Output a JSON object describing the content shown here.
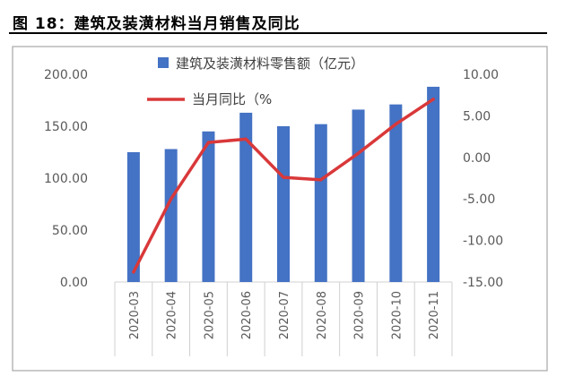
{
  "header": {
    "title": "图 18：建筑及装潢材料当月销售及同比"
  },
  "colors": {
    "bar": "#4472C4",
    "line": "#D9383A",
    "frame": "#A6A6A6",
    "axis_text": "#595959"
  },
  "chart_data": {
    "type": "bar",
    "title": "",
    "categories": [
      "2020-03",
      "2020-04",
      "2020-05",
      "2020-06",
      "2020-07",
      "2020-08",
      "2020-09",
      "2020-10",
      "2020-11"
    ],
    "series": [
      {
        "name": "建筑及装潢材料零售额（亿元）",
        "type": "bar",
        "axis": "left",
        "values": [
          125,
          128,
          145,
          163,
          150,
          152,
          166,
          171,
          188
        ]
      },
      {
        "name": "当月同比（%",
        "type": "line",
        "axis": "right",
        "values": [
          -13.8,
          -5.0,
          1.8,
          2.2,
          -2.4,
          -2.7,
          0.5,
          4.0,
          7.0
        ]
      }
    ],
    "y_left": {
      "min": 0,
      "max": 200,
      "ticks": [
        0,
        50,
        100,
        150,
        200
      ],
      "tick_labels": [
        "0.00",
        "50.00",
        "100.00",
        "150.00",
        "200.00"
      ]
    },
    "y_right": {
      "min": -15,
      "max": 10,
      "ticks": [
        -15,
        -10,
        -5,
        0,
        5,
        10
      ],
      "tick_labels": [
        "-15.00",
        "-10.00",
        "-5.00",
        "0.00",
        "5.00",
        "10.00"
      ]
    },
    "grid": false,
    "legend": "top-right"
  }
}
